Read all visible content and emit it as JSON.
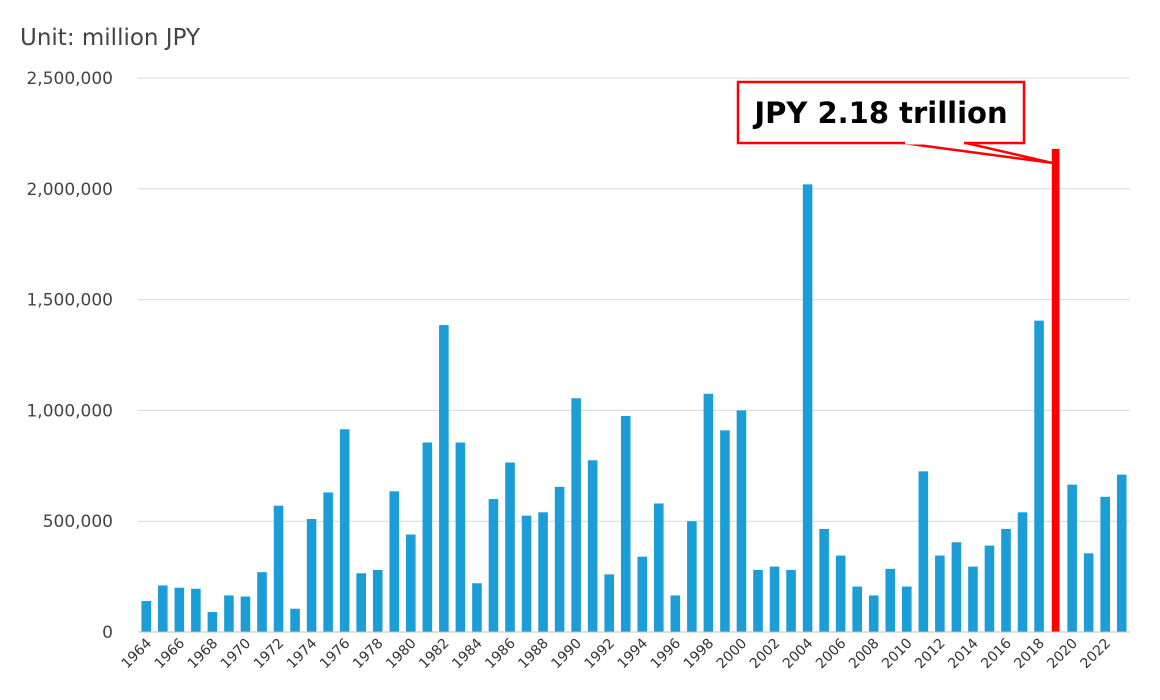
{
  "unit_label": "Unit: million JPY",
  "colors": {
    "bar": "#1b9dd7",
    "highlight": "#ff0000",
    "grid": "#d9d9d9",
    "axis": "#bfbfbf"
  },
  "callout": {
    "text": "JPY 2.18 trillion",
    "target_year": "2019"
  },
  "chart_data": {
    "type": "bar",
    "title": "",
    "xlabel": "",
    "ylabel": "Unit: million JPY",
    "ylim": [
      0,
      2500000
    ],
    "yticks": [
      0,
      500000,
      1000000,
      1500000,
      2000000,
      2500000
    ],
    "ytick_labels": [
      "0",
      "500,000",
      "1,000,000",
      "1,500,000",
      "2,000,000",
      "2,500,000"
    ],
    "grid": true,
    "legend": "none",
    "categories": [
      "1964",
      "1965",
      "1966",
      "1967",
      "1968",
      "1969",
      "1970",
      "1971",
      "1972",
      "1973",
      "1974",
      "1975",
      "1976",
      "1977",
      "1978",
      "1979",
      "1980",
      "1981",
      "1982",
      "1983",
      "1984",
      "1985",
      "1986",
      "1987",
      "1988",
      "1989",
      "1990",
      "1991",
      "1992",
      "1993",
      "1994",
      "1995",
      "1996",
      "1997",
      "1998",
      "1999",
      "2000",
      "2001",
      "2002",
      "2003",
      "2004",
      "2005",
      "2006",
      "2007",
      "2008",
      "2009",
      "2010",
      "2011",
      "2012",
      "2013",
      "2014",
      "2015",
      "2016",
      "2017",
      "2018",
      "2019",
      "2020",
      "2021",
      "2022",
      "2023"
    ],
    "xtick_labels": [
      "1964",
      "1966",
      "1968",
      "1970",
      "1972",
      "1974",
      "1976",
      "1978",
      "1980",
      "1982",
      "1984",
      "1986",
      "1988",
      "1990",
      "1992",
      "1994",
      "1996",
      "1998",
      "2000",
      "2002",
      "2004",
      "2006",
      "2008",
      "2010",
      "2012",
      "2014",
      "2016",
      "2018",
      "2020",
      "2022"
    ],
    "values": [
      140000,
      210000,
      200000,
      195000,
      90000,
      165000,
      160000,
      270000,
      570000,
      105000,
      510000,
      630000,
      915000,
      265000,
      280000,
      635000,
      440000,
      855000,
      1385000,
      855000,
      220000,
      600000,
      765000,
      525000,
      540000,
      655000,
      1055000,
      775000,
      260000,
      975000,
      340000,
      580000,
      165000,
      500000,
      1075000,
      910000,
      1000000,
      280000,
      295000,
      280000,
      2020000,
      465000,
      345000,
      205000,
      165000,
      285000,
      205000,
      725000,
      345000,
      405000,
      295000,
      390000,
      465000,
      540000,
      1405000,
      2180000,
      665000,
      355000,
      610000,
      710000
    ],
    "highlight_index": 55
  }
}
